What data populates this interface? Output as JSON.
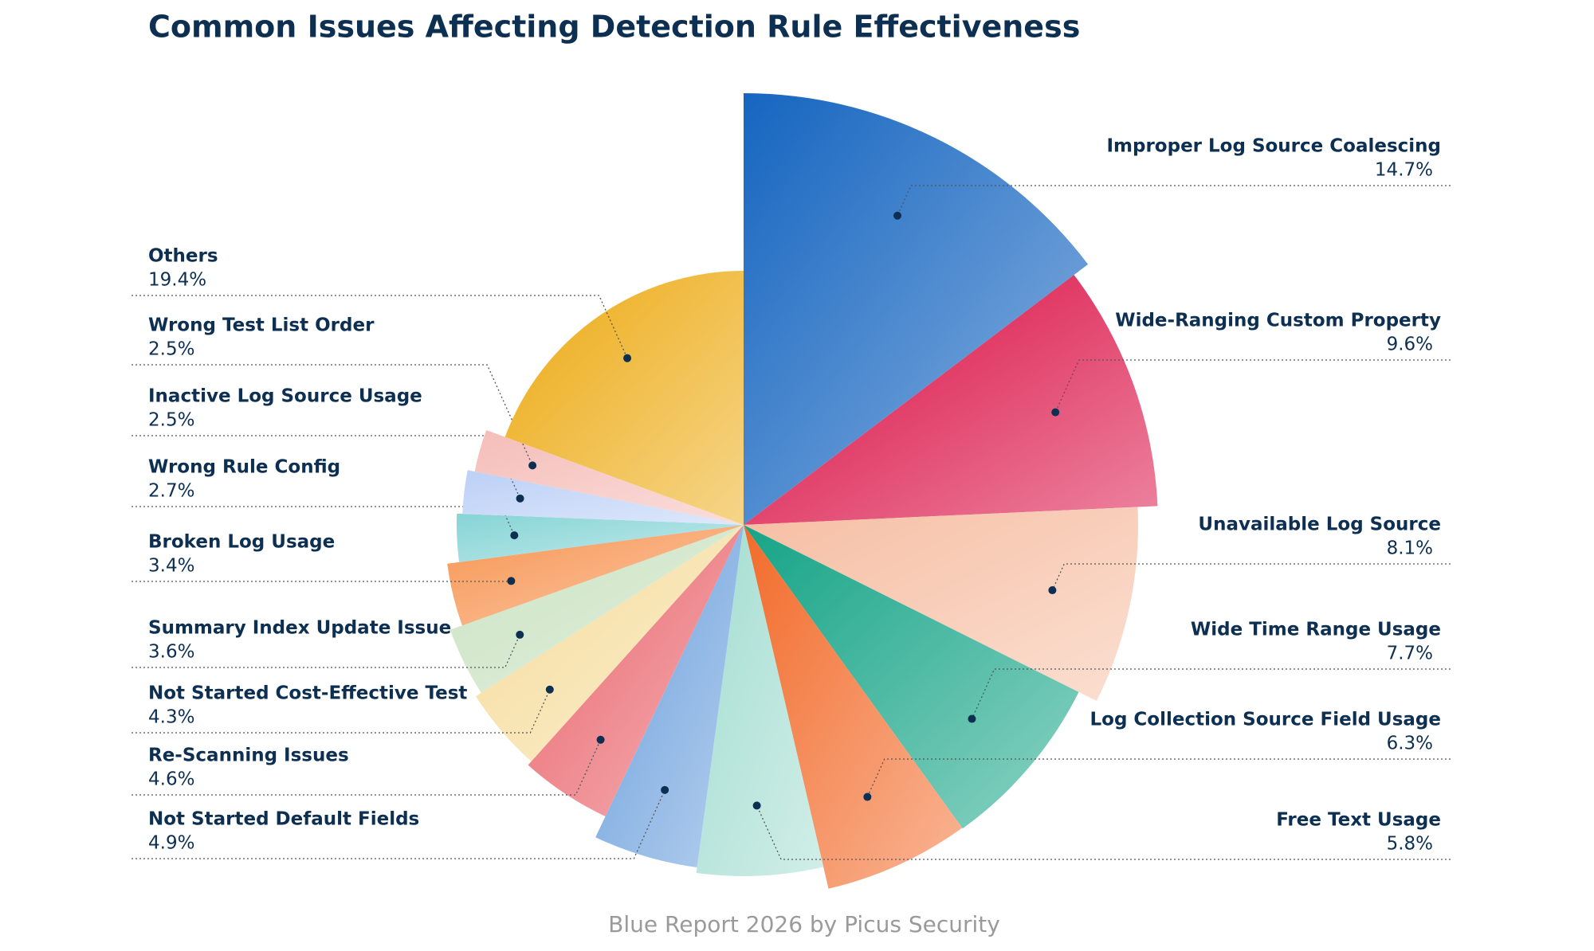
{
  "chart_data": {
    "type": "pie",
    "title": "Common Issues Affecting Detection Rule Effectiveness",
    "footer": "Blue Report 2026 by Picus Security",
    "categories": [
      "Improper Log Source Coalescing",
      "Wide-Ranging Custom Property",
      "Unavailable Log Source",
      "Wide Time Range Usage",
      "Log Collection  Source Field Usage",
      "Free Text Usage",
      "Not Started Default Fields",
      "Re-Scanning Issues",
      "Not Started Cost-Effective Test",
      "Summary Index Update Issue",
      "Broken Log Usage",
      "Wrong Rule Config",
      "Inactive Log Source Usage",
      "Wrong Test List Order",
      "Others"
    ],
    "values": [
      14.7,
      9.6,
      8.1,
      7.7,
      6.3,
      5.8,
      4.9,
      4.6,
      4.3,
      3.6,
      3.4,
      2.7,
      2.5,
      2.5,
      19.4
    ],
    "value_labels": [
      "14.7%",
      "9.6%",
      "8.1%",
      "7.7%",
      "6.3%",
      "5.8%",
      "4.9%",
      "4.6%",
      "4.3%",
      "3.6%",
      "3.4%",
      "2.7%",
      "2.5%",
      "2.5%",
      "19.4%"
    ],
    "colors": [
      "#1565c0",
      "#d9083f",
      "#f6bea3",
      "#16a487",
      "#f26b2a",
      "#a3ddd1",
      "#6a9fdc",
      "#e9656c",
      "#f6dc9c",
      "#c9e2c1",
      "#f79552",
      "#86d4d6",
      "#bcd0f6",
      "#f5bdb8",
      "#ecaa12"
    ]
  }
}
